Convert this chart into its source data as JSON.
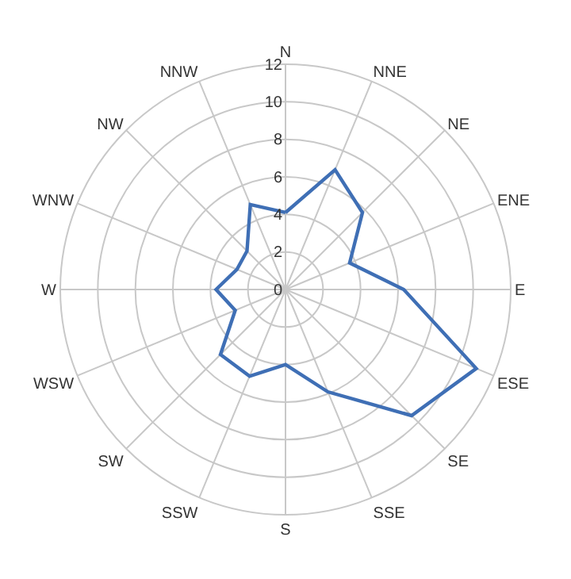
{
  "chart_data": {
    "type": "radar",
    "categories": [
      "N",
      "NNE",
      "NE",
      "ENE",
      "E",
      "ESE",
      "SE",
      "SSE",
      "S",
      "SSW",
      "SW",
      "WSW",
      "W",
      "WNW",
      "NW",
      "NNW"
    ],
    "series": [
      {
        "color": "#3f6fb5",
        "values": [
          4.1,
          6.9,
          5.8,
          3.7,
          6.3,
          11,
          9.5,
          5.9,
          4,
          5,
          4.9,
          2.9,
          3.7,
          2.8,
          2.9,
          4.9
        ]
      }
    ],
    "ylim": [
      0,
      12
    ],
    "yticks": [
      0,
      2,
      4,
      6,
      8,
      10,
      12
    ],
    "grid": true,
    "marker": "none",
    "line_style": "solid"
  }
}
